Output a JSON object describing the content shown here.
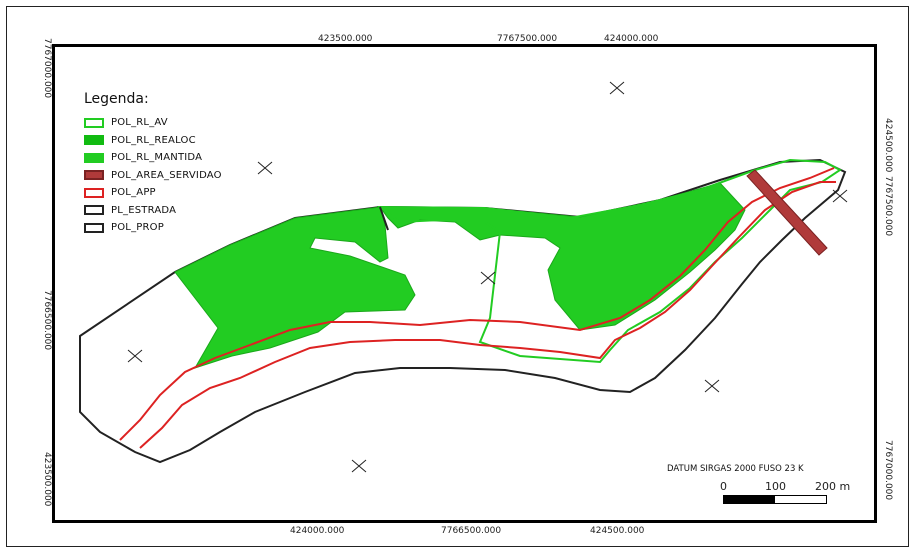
{
  "legend": {
    "title": "Legenda:",
    "items": [
      {
        "label": "POL_RL_AV",
        "fill": "#ffffff",
        "stroke": "#22cc22"
      },
      {
        "label": "POL_RL_REALOC",
        "fill": "#11bb11",
        "stroke": "#11bb11"
      },
      {
        "label": "POL_RL_MANTIDA",
        "fill": "#22cc22",
        "stroke": "#22cc22"
      },
      {
        "label": "POL_AREA_SERVIDAO",
        "fill": "#b03a3a",
        "stroke": "#7a2222"
      },
      {
        "label": "POL_APP",
        "fill": "#ffffff",
        "stroke": "#dd2222"
      },
      {
        "label": "PL_ESTRADA",
        "fill": "#ffffff",
        "stroke": "#222222"
      },
      {
        "label": "POL_PROP",
        "fill": "#ffffff",
        "stroke": "#222222"
      }
    ]
  },
  "coordinates": {
    "top": [
      "423500.000",
      "7767500.000",
      "424000.000"
    ],
    "bottom": [
      "424000.000",
      "7766500.000",
      "424500.000"
    ],
    "left": [
      "7767000.000",
      "7766500.000",
      "423500.000"
    ],
    "right": [
      "424500.000",
      "7767500.000",
      "7767000.000"
    ]
  },
  "datum": "DATUM SIRGAS 2000 FUSO 23 K",
  "scale": {
    "labels": [
      "0",
      "100",
      "200 m"
    ]
  },
  "colors": {
    "vegetation": "#22cc22",
    "app": "#dd2222",
    "servidao": "#b03a3a",
    "boundary": "#222222"
  }
}
